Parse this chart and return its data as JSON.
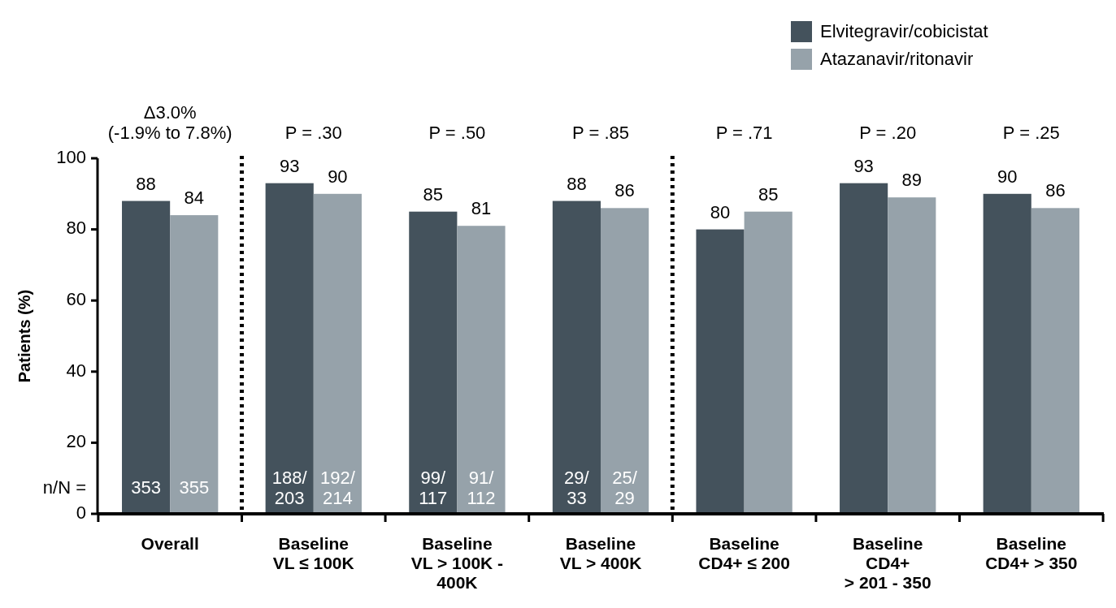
{
  "chart_data": {
    "type": "bar",
    "ylabel": "Patients (%)",
    "categories": [
      "Overall",
      "Baseline\nVL ≤ 100K",
      "Baseline\nVL > 100K -\n400K",
      "Baseline\nVL > 400K",
      "Baseline\nCD4+ ≤ 200",
      "Baseline\nCD4+\n> 201 - 350",
      "Baseline\nCD4+ > 350"
    ],
    "series": [
      {
        "name": "Elvitegravir/cobicistat",
        "color": "#44525c",
        "values": [
          88,
          93,
          85,
          88,
          80,
          93,
          90
        ]
      },
      {
        "name": "Atazanavir/ritonavir",
        "color": "#96a2aa",
        "values": [
          84,
          90,
          81,
          86,
          85,
          89,
          86
        ]
      }
    ],
    "ylim": [
      0,
      100
    ],
    "yticks": [
      0,
      20,
      40,
      60,
      80,
      100
    ],
    "data_labels": true,
    "legend": "top right",
    "annotations": [
      "Δ3.0%\n(-1.9% to 7.8%)",
      "P = .30",
      "P = .50",
      "P = .85",
      "P = .71",
      "P = .20",
      "P = .25",
      "n/N =",
      {
        "text": "353",
        "x": "Overall",
        "y": 7
      },
      {
        "text": "355",
        "x": "Overall",
        "y": 7
      },
      {
        "text": "188/\n203",
        "x": "Baseline\nVL ≤ 100K",
        "y": 7
      },
      {
        "text": "192/\n214",
        "x": "Baseline\nVL ≤ 100K",
        "y": 7
      },
      {
        "text": "99/\n117",
        "x": "Baseline\nVL > 100K -\n400K",
        "y": 7
      },
      {
        "text": "91/\n112",
        "x": "Baseline\nVL > 100K -\n400K",
        "y": 7
      },
      {
        "text": "29/\n33",
        "x": "Baseline\nVL > 400K",
        "y": 7
      },
      {
        "text": "25/\n29",
        "x": "Baseline\nVL > 400K",
        "y": 7
      }
    ]
  }
}
